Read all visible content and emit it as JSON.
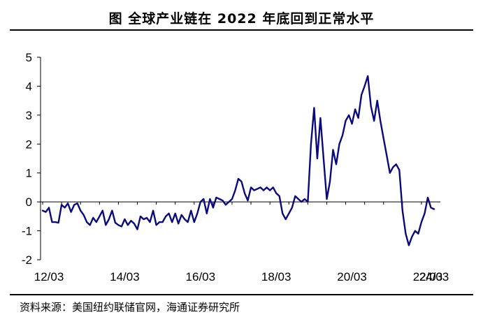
{
  "title": "图  全球产业链在 2022 年底回到正常水平",
  "source": "资料来源：美国纽约联储官网，海通证券研究所",
  "chart_data": {
    "type": "line",
    "title": "图  全球产业链在 2022 年底回到正常水平",
    "xlabel": "",
    "ylabel": "",
    "ylim": [
      -2,
      5
    ],
    "yticks": [
      "-2",
      "-1",
      "0",
      "1",
      "2",
      "3",
      "4",
      "5"
    ],
    "xticks": [
      "12/03",
      "14/03",
      "16/03",
      "18/03",
      "20/03",
      "22/03",
      "24/03"
    ],
    "x_start": "2012-01",
    "frequency": "monthly",
    "grid": false,
    "series": [
      {
        "color": "#0a0a7a",
        "values": [
          -0.3,
          -0.35,
          -0.2,
          -0.7,
          -0.7,
          -0.72,
          -0.1,
          -0.2,
          -0.05,
          -0.35,
          -0.1,
          -0.05,
          -0.3,
          -0.45,
          -0.7,
          -0.8,
          -0.55,
          -0.7,
          -0.5,
          -0.3,
          -0.8,
          -0.6,
          -0.3,
          -0.72,
          -0.8,
          -0.85,
          -0.6,
          -0.8,
          -0.65,
          -0.75,
          -0.95,
          -0.5,
          -0.6,
          -0.55,
          -0.7,
          -0.3,
          -0.8,
          -0.7,
          -0.7,
          -0.5,
          -0.4,
          -0.7,
          -0.4,
          -0.75,
          -0.45,
          -0.6,
          -0.7,
          -0.3,
          -0.7,
          -0.4,
          0.0,
          0.1,
          -0.4,
          0.1,
          -0.2,
          0.15,
          0.1,
          0.05,
          -0.1,
          0.0,
          0.1,
          0.4,
          0.8,
          0.7,
          0.3,
          0.05,
          0.5,
          0.4,
          0.45,
          0.5,
          0.4,
          0.5,
          0.4,
          0.5,
          0.3,
          0.2,
          -0.4,
          -0.6,
          -0.4,
          -0.2,
          0.2,
          0.1,
          0.0,
          0.1,
          0.0,
          2.0,
          3.25,
          1.5,
          2.9,
          1.5,
          0.1,
          0.7,
          1.8,
          1.3,
          2.0,
          2.3,
          2.8,
          3.0,
          2.7,
          3.2,
          2.9,
          3.7,
          4.0,
          4.35,
          3.3,
          2.8,
          3.5,
          2.8,
          2.2,
          1.6,
          1.0,
          1.2,
          1.3,
          1.1,
          -0.3,
          -1.1,
          -1.5,
          -1.2,
          -1.0,
          -1.1,
          -0.7,
          -0.4,
          0.15,
          -0.2,
          -0.25
        ]
      }
    ]
  }
}
